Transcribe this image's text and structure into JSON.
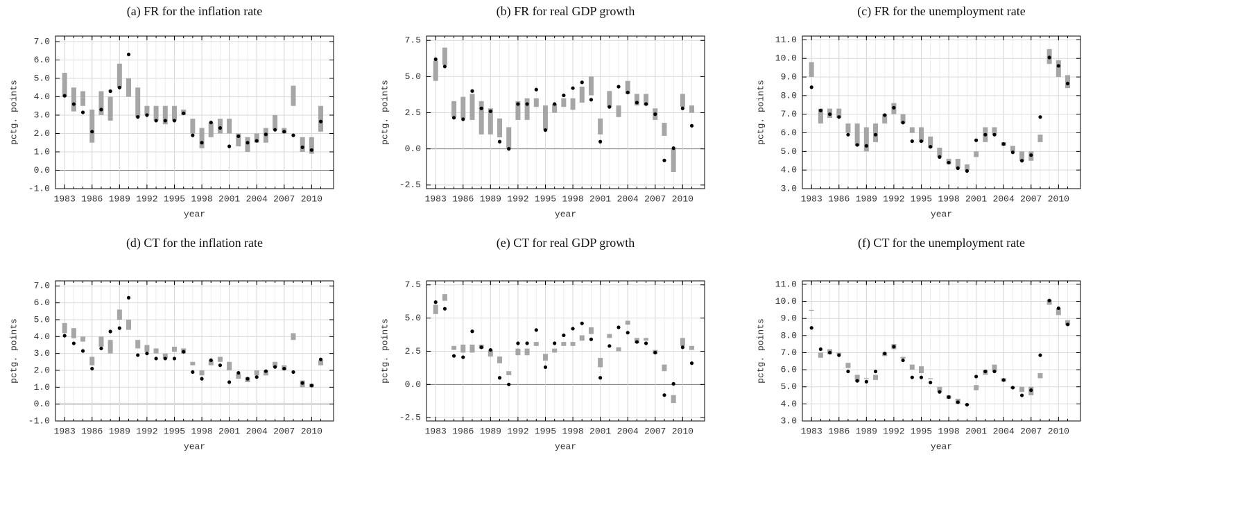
{
  "chart_data": [
    {
      "type": "range",
      "title": "(a) FR for the inflation rate",
      "x_label": "year",
      "y_label": "pctg. points",
      "grid": true,
      "x": [
        1983,
        1984,
        1985,
        1986,
        1987,
        1988,
        1989,
        1990,
        1991,
        1992,
        1993,
        1994,
        1995,
        1996,
        1997,
        1998,
        1999,
        2000,
        2001,
        2002,
        2003,
        2004,
        2005,
        2006,
        2007,
        2008,
        2009,
        2010,
        2011
      ],
      "xlim": [
        1982,
        2012.4
      ],
      "xticks": [
        1983,
        1986,
        1989,
        1992,
        1995,
        1998,
        2001,
        2004,
        2007,
        2010
      ],
      "ylim": [
        -1,
        7.3
      ],
      "yticks": [
        {
          "value": -1,
          "label": "-1.0"
        },
        {
          "value": 0,
          "label": "0.0"
        },
        {
          "value": 1,
          "label": "1.0"
        },
        {
          "value": 2,
          "label": "2.0"
        },
        {
          "value": 3,
          "label": "3.0"
        },
        {
          "value": 4,
          "label": "4.0"
        },
        {
          "value": 5,
          "label": "5.0"
        },
        {
          "value": 6,
          "label": "6.0"
        },
        {
          "value": 7,
          "label": "7.0"
        }
      ],
      "intervals": {
        "color": "#a6a6a6",
        "low": [
          4.0,
          3.2,
          3.5,
          1.5,
          3.0,
          2.7,
          4.5,
          4.0,
          2.9,
          3.0,
          2.7,
          2.5,
          2.7,
          3.0,
          2.0,
          1.2,
          1.8,
          2.0,
          2.0,
          1.3,
          1.0,
          1.5,
          1.5,
          2.2,
          2.0,
          3.5,
          1.0,
          0.9,
          2.1
        ],
        "high": [
          5.3,
          4.5,
          4.3,
          3.3,
          4.3,
          4.0,
          5.8,
          5.0,
          4.5,
          3.5,
          3.5,
          3.5,
          3.5,
          3.3,
          2.8,
          2.3,
          2.6,
          2.8,
          2.8,
          2.0,
          1.8,
          2.0,
          2.3,
          3.0,
          2.3,
          4.6,
          1.8,
          1.8,
          3.5
        ]
      },
      "actual": {
        "color": "#000000",
        "values": [
          4.05,
          3.6,
          3.15,
          2.1,
          3.3,
          4.3,
          4.5,
          6.3,
          2.9,
          3.0,
          2.7,
          2.7,
          2.7,
          3.1,
          1.9,
          1.5,
          2.6,
          2.3,
          1.3,
          1.85,
          1.5,
          1.6,
          1.95,
          2.2,
          2.1,
          1.9,
          1.25,
          1.1,
          2.65
        ]
      }
    },
    {
      "type": "range",
      "title": "(b) FR for real GDP growth",
      "x_label": "year",
      "y_label": "pctg. points",
      "grid": true,
      "x": [
        1983,
        1984,
        1985,
        1986,
        1987,
        1988,
        1989,
        1990,
        1991,
        1992,
        1993,
        1994,
        1995,
        1996,
        1997,
        1998,
        1999,
        2000,
        2001,
        2002,
        2003,
        2004,
        2005,
        2006,
        2007,
        2008,
        2009,
        2010,
        2011
      ],
      "xlim": [
        1982,
        2012.4
      ],
      "xticks": [
        1983,
        1986,
        1989,
        1992,
        1995,
        1998,
        2001,
        2004,
        2007,
        2010
      ],
      "ylim": [
        -2.75,
        7.8
      ],
      "yticks": [
        -2.5,
        {
          "value": 0,
          "label": "0.0"
        },
        2.5,
        {
          "value": 5,
          "label": "5.0"
        },
        7.5
      ],
      "intervals": {
        "color": "#a6a6a6",
        "low": [
          4.7,
          5.8,
          2.2,
          2.1,
          2.0,
          1.0,
          1.0,
          0.8,
          0.0,
          2.0,
          2.0,
          2.9,
          1.3,
          2.5,
          2.9,
          2.7,
          3.2,
          3.7,
          1.0,
          2.9,
          2.2,
          3.8,
          3.0,
          3.0,
          2.0,
          0.9,
          -1.6,
          2.9,
          2.5
        ],
        "high": [
          6.1,
          7.0,
          3.3,
          3.6,
          3.8,
          3.3,
          2.8,
          2.1,
          1.5,
          3.3,
          3.5,
          3.5,
          3.0,
          3.1,
          3.5,
          3.5,
          4.3,
          5.0,
          2.1,
          4.0,
          3.0,
          4.7,
          3.8,
          3.8,
          2.8,
          1.8,
          0.0,
          3.8,
          3.0
        ]
      },
      "actual": {
        "color": "#000000",
        "values": [
          6.2,
          5.7,
          2.15,
          2.05,
          4.0,
          2.8,
          2.6,
          0.5,
          0.0,
          3.1,
          3.1,
          4.1,
          1.3,
          3.1,
          3.7,
          4.2,
          4.6,
          3.4,
          0.5,
          2.9,
          4.3,
          3.9,
          3.2,
          3.1,
          2.4,
          -0.8,
          0.05,
          2.8,
          1.6
        ]
      }
    },
    {
      "type": "range",
      "title": "(c) FR for the unemployment rate",
      "x_label": "year",
      "y_label": "pctg. points",
      "grid": true,
      "x": [
        1983,
        1984,
        1985,
        1986,
        1987,
        1988,
        1989,
        1990,
        1991,
        1992,
        1993,
        1994,
        1995,
        1996,
        1997,
        1998,
        1999,
        2000,
        2001,
        2002,
        2003,
        2004,
        2005,
        2006,
        2007,
        2008,
        2009,
        2010,
        2011
      ],
      "xlim": [
        1982,
        2012.4
      ],
      "xticks": [
        1983,
        1986,
        1989,
        1992,
        1995,
        1998,
        2001,
        2004,
        2007,
        2010
      ],
      "ylim": [
        3,
        11.2
      ],
      "yticks": [
        {
          "value": 3,
          "label": "3.0"
        },
        {
          "value": 4,
          "label": "4.0"
        },
        {
          "value": 5,
          "label": "5.0"
        },
        {
          "value": 6,
          "label": "6.0"
        },
        {
          "value": 7,
          "label": "7.0"
        },
        {
          "value": 8,
          "label": "8.0"
        },
        {
          "value": 9,
          "label": "9.0"
        },
        {
          "value": 10,
          "label": "10.0"
        },
        {
          "value": 11,
          "label": "11.0"
        }
      ],
      "intervals": {
        "color": "#a6a6a6",
        "low": [
          9.0,
          6.5,
          6.8,
          6.8,
          6.0,
          5.3,
          5.0,
          5.5,
          6.5,
          7.0,
          6.5,
          6.0,
          5.5,
          5.2,
          4.7,
          4.3,
          4.1,
          4.0,
          4.7,
          5.5,
          5.9,
          5.3,
          5.0,
          4.5,
          4.5,
          5.5,
          9.7,
          9.0,
          8.4
        ],
        "high": [
          9.8,
          7.3,
          7.3,
          7.3,
          6.5,
          6.5,
          6.3,
          6.5,
          7.0,
          7.6,
          7.0,
          6.3,
          6.3,
          5.8,
          5.2,
          4.6,
          4.6,
          4.3,
          5.0,
          6.3,
          6.3,
          5.5,
          5.3,
          5.0,
          5.0,
          5.9,
          10.5,
          9.9,
          9.1
        ]
      },
      "actual": {
        "color": "#000000",
        "values": [
          8.45,
          7.2,
          7.0,
          6.85,
          5.9,
          5.35,
          5.3,
          5.9,
          6.95,
          7.35,
          6.55,
          5.55,
          5.55,
          5.25,
          4.7,
          4.4,
          4.1,
          3.95,
          5.6,
          5.9,
          5.9,
          5.4,
          4.95,
          4.5,
          4.8,
          6.85,
          10.05,
          9.6,
          8.65
        ]
      }
    },
    {
      "type": "range",
      "title": "(d) CT for the inflation rate",
      "x_label": "year",
      "y_label": "pctg. points",
      "grid": true,
      "x": [
        1983,
        1984,
        1985,
        1986,
        1987,
        1988,
        1989,
        1990,
        1991,
        1992,
        1993,
        1994,
        1995,
        1996,
        1997,
        1998,
        1999,
        2000,
        2001,
        2002,
        2003,
        2004,
        2005,
        2006,
        2007,
        2008,
        2009,
        2010,
        2011
      ],
      "xlim": [
        1982,
        2012.4
      ],
      "xticks": [
        1983,
        1986,
        1989,
        1992,
        1995,
        1998,
        2001,
        2004,
        2007,
        2010
      ],
      "ylim": [
        -1,
        7.3
      ],
      "yticks": [
        {
          "value": -1,
          "label": "-1.0"
        },
        {
          "value": 0,
          "label": "0.0"
        },
        {
          "value": 1,
          "label": "1.0"
        },
        {
          "value": 2,
          "label": "2.0"
        },
        {
          "value": 3,
          "label": "3.0"
        },
        {
          "value": 4,
          "label": "4.0"
        },
        {
          "value": 5,
          "label": "5.0"
        },
        {
          "value": 6,
          "label": "6.0"
        },
        {
          "value": 7,
          "label": "7.0"
        }
      ],
      "intervals": {
        "color": "#a6a6a6",
        "low": [
          4.2,
          3.9,
          3.7,
          2.3,
          3.4,
          3.0,
          5.0,
          4.4,
          3.3,
          3.1,
          3.0,
          2.7,
          3.1,
          3.0,
          2.3,
          1.7,
          2.3,
          2.5,
          2.0,
          1.5,
          1.3,
          1.7,
          1.7,
          2.2,
          2.0,
          3.8,
          1.0,
          1.0,
          2.3
        ],
        "high": [
          4.8,
          4.5,
          4.0,
          2.8,
          4.0,
          3.8,
          5.6,
          5.0,
          3.8,
          3.5,
          3.3,
          3.0,
          3.4,
          3.3,
          2.5,
          2.0,
          2.6,
          2.8,
          2.5,
          1.8,
          1.6,
          2.0,
          2.0,
          2.5,
          2.3,
          4.2,
          1.4,
          1.2,
          2.6
        ]
      },
      "actual": {
        "color": "#000000",
        "values": [
          4.05,
          3.6,
          3.15,
          2.1,
          3.3,
          4.3,
          4.5,
          6.3,
          2.9,
          3.0,
          2.7,
          2.7,
          2.7,
          3.1,
          1.9,
          1.5,
          2.6,
          2.3,
          1.3,
          1.85,
          1.5,
          1.6,
          1.95,
          2.2,
          2.1,
          1.9,
          1.25,
          1.1,
          2.65
        ]
      }
    },
    {
      "type": "range",
      "title": "(e) CT for real GDP growth",
      "x_label": "year",
      "y_label": "pctg. points",
      "grid": true,
      "x": [
        1983,
        1984,
        1985,
        1986,
        1987,
        1988,
        1989,
        1990,
        1991,
        1992,
        1993,
        1994,
        1995,
        1996,
        1997,
        1998,
        1999,
        2000,
        2001,
        2002,
        2003,
        2004,
        2005,
        2006,
        2007,
        2008,
        2009,
        2010,
        2011
      ],
      "xlim": [
        1982,
        2012.4
      ],
      "xticks": [
        1983,
        1986,
        1989,
        1992,
        1995,
        1998,
        2001,
        2004,
        2007,
        2010
      ],
      "ylim": [
        -2.75,
        7.8
      ],
      "yticks": [
        -2.5,
        {
          "value": 0,
          "label": "0.0"
        },
        2.5,
        {
          "value": 5,
          "label": "5.0"
        },
        7.5
      ],
      "intervals": {
        "color": "#a6a6a6",
        "low": [
          5.3,
          6.3,
          2.6,
          2.4,
          2.4,
          2.7,
          2.1,
          1.6,
          0.7,
          2.2,
          2.2,
          2.9,
          1.8,
          2.4,
          2.9,
          2.9,
          3.3,
          3.8,
          1.3,
          3.5,
          2.5,
          4.5,
          3.1,
          3.3,
          2.3,
          1.0,
          -1.4,
          2.9,
          2.6
        ],
        "high": [
          6.0,
          6.8,
          2.9,
          3.0,
          3.0,
          3.0,
          2.6,
          2.1,
          1.0,
          2.7,
          2.7,
          3.2,
          2.3,
          2.7,
          3.2,
          3.2,
          3.7,
          4.3,
          2.0,
          3.8,
          2.8,
          4.8,
          3.5,
          3.5,
          2.6,
          1.5,
          -0.8,
          3.5,
          2.9
        ]
      },
      "actual": {
        "color": "#000000",
        "values": [
          6.2,
          5.7,
          2.15,
          2.05,
          4.0,
          2.8,
          2.6,
          0.5,
          0.0,
          3.1,
          3.1,
          4.1,
          1.3,
          3.1,
          3.7,
          4.2,
          4.6,
          3.4,
          0.5,
          2.9,
          4.3,
          3.9,
          3.2,
          3.1,
          2.4,
          -0.8,
          0.05,
          2.8,
          1.6
        ]
      }
    },
    {
      "type": "range",
      "title": "(f) CT for the unemployment rate",
      "x_label": "year",
      "y_label": "pctg. points",
      "grid": true,
      "x": [
        1983,
        1984,
        1985,
        1986,
        1987,
        1988,
        1989,
        1990,
        1991,
        1992,
        1993,
        1994,
        1995,
        1996,
        1997,
        1998,
        1999,
        2000,
        2001,
        2002,
        2003,
        2004,
        2005,
        2006,
        2007,
        2008,
        2009,
        2010,
        2011
      ],
      "xlim": [
        1982,
        2012.4
      ],
      "xticks": [
        1983,
        1986,
        1989,
        1992,
        1995,
        1998,
        2001,
        2004,
        2007,
        2010
      ],
      "ylim": [
        3,
        11.2
      ],
      "yticks": [
        {
          "value": 3,
          "label": "3.0"
        },
        {
          "value": 4,
          "label": "4.0"
        },
        {
          "value": 5,
          "label": "5.0"
        },
        {
          "value": 6,
          "label": "6.0"
        },
        {
          "value": 7,
          "label": "7.0"
        },
        {
          "value": 8,
          "label": "8.0"
        },
        {
          "value": 9,
          "label": "9.0"
        },
        {
          "value": 10,
          "label": "10.0"
        },
        {
          "value": 11,
          "label": "11.0"
        }
      ],
      "intervals": {
        "color": "#a6a6a6",
        "low": [
          9.45,
          6.7,
          6.9,
          6.9,
          6.1,
          5.3,
          5.45,
          5.4,
          6.8,
          7.2,
          6.65,
          6.0,
          5.8,
          5.45,
          4.7,
          4.3,
          4.0,
          3.95,
          4.8,
          5.7,
          5.9,
          5.3,
          4.9,
          4.7,
          4.5,
          5.5,
          9.8,
          9.2,
          8.6
        ],
        "high": [
          9.5,
          7.0,
          7.2,
          7.0,
          6.4,
          5.7,
          5.5,
          5.7,
          7.0,
          7.5,
          6.75,
          6.3,
          6.2,
          5.5,
          5.0,
          4.5,
          4.3,
          4.0,
          5.1,
          6.0,
          6.3,
          5.5,
          5.0,
          5.0,
          5.0,
          5.8,
          10.1,
          9.6,
          8.9
        ]
      },
      "actual": {
        "color": "#000000",
        "values": [
          8.45,
          7.2,
          7.0,
          6.85,
          5.9,
          5.35,
          5.3,
          5.9,
          6.95,
          7.35,
          6.55,
          5.55,
          5.55,
          5.25,
          4.7,
          4.4,
          4.1,
          3.95,
          5.6,
          5.9,
          5.9,
          5.4,
          4.95,
          4.5,
          4.8,
          6.85,
          10.05,
          9.6,
          8.65
        ]
      }
    }
  ]
}
